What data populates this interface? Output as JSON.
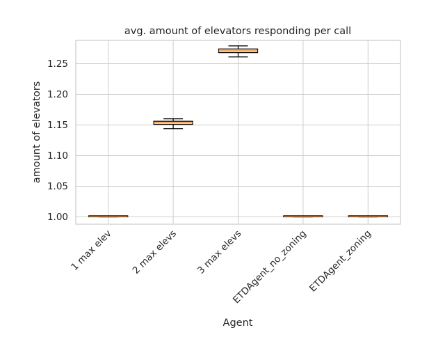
{
  "chart_data": {
    "type": "box",
    "title": "avg. amount of elevators responding per call",
    "xlabel": "Agent",
    "ylabel": "amount of elevators",
    "ylim": [
      0.988,
      1.288
    ],
    "yticks": [
      1.0,
      1.05,
      1.1,
      1.15,
      1.2,
      1.25
    ],
    "ytick_labels": [
      "1.00",
      "1.05",
      "1.10",
      "1.15",
      "1.20",
      "1.25"
    ],
    "grid": true,
    "categories": [
      "1 max elev",
      "2 max elevs",
      "3 max elevs",
      "ETDAgent_no_zoning",
      "ETDAgent_zoning"
    ],
    "boxes": [
      {
        "label": "1 max elev",
        "whisker_low": 1.0,
        "q1": 1.0,
        "median": 1.0,
        "q3": 1.0,
        "whisker_high": 1.0
      },
      {
        "label": "2 max elevs",
        "whisker_low": 1.144,
        "q1": 1.151,
        "median": 1.154,
        "q3": 1.156,
        "whisker_high": 1.16
      },
      {
        "label": "3 max elevs",
        "whisker_low": 1.261,
        "q1": 1.268,
        "median": 1.271,
        "q3": 1.274,
        "whisker_high": 1.279
      },
      {
        "label": "ETDAgent_no_zoning",
        "whisker_low": 1.0,
        "q1": 1.0,
        "median": 1.0,
        "q3": 1.0,
        "whisker_high": 1.0
      },
      {
        "label": "ETDAgent_zoning",
        "whisker_low": 1.0,
        "q1": 1.0,
        "median": 1.0,
        "q3": 1.0,
        "whisker_high": 1.0
      }
    ],
    "colors": {
      "box_fill": "#fbe0c8",
      "box_edge": "#000000",
      "median": "#f28e2b",
      "grid": "#cccccc",
      "spine": "#cccccc"
    }
  }
}
